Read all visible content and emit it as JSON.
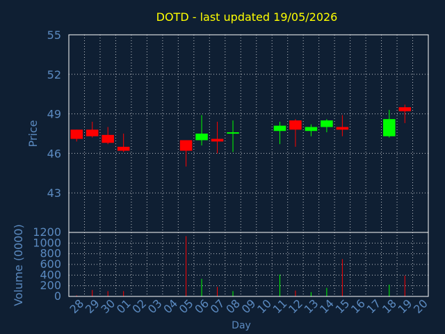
{
  "chart_data": {
    "type": "candlestick",
    "title": "DOTD - last updated 19/05/2026",
    "xlabel": "Day",
    "ylabel": "Price",
    "volume_label": "Volume (0000)",
    "price_ylim": [
      40,
      55
    ],
    "price_ticks": [
      43,
      46,
      49,
      52,
      55
    ],
    "volume_ylim": [
      0,
      1200
    ],
    "volume_ticks": [
      0,
      200,
      400,
      600,
      800,
      1000,
      1200
    ],
    "x_labels": [
      "28",
      "29",
      "30",
      "01",
      "02",
      "03",
      "04",
      "05",
      "06",
      "07",
      "08",
      "09",
      "10",
      "11",
      "12",
      "13",
      "14",
      "15",
      "16",
      "17",
      "18",
      "19",
      "20"
    ],
    "grid": true,
    "colors": {
      "up": "#00ff00",
      "down": "#ff0000",
      "title": "#ffff00",
      "axis": "#5b8ac0",
      "background": "#0f1f33"
    },
    "candles": [
      {
        "x": 0,
        "open": 47.8,
        "high": 47.8,
        "low": 46.9,
        "close": 47.1
      },
      {
        "x": 1,
        "open": 47.8,
        "high": 48.4,
        "low": 47.2,
        "close": 47.3
      },
      {
        "x": 2,
        "open": 47.4,
        "high": 48.0,
        "low": 46.7,
        "close": 46.8
      },
      {
        "x": 3,
        "open": 46.5,
        "high": 47.5,
        "low": 46.1,
        "close": 46.2
      },
      {
        "x": 7,
        "open": 47.0,
        "high": 47.0,
        "low": 45.0,
        "close": 46.2
      },
      {
        "x": 8,
        "open": 47.0,
        "high": 48.9,
        "low": 46.6,
        "close": 47.5
      },
      {
        "x": 9,
        "open": 47.1,
        "high": 48.4,
        "low": 46.0,
        "close": 46.9
      },
      {
        "x": 10,
        "open": 47.5,
        "high": 48.5,
        "low": 46.1,
        "close": 47.6
      },
      {
        "x": 13,
        "open": 47.7,
        "high": 48.4,
        "low": 46.7,
        "close": 48.1
      },
      {
        "x": 14,
        "open": 48.5,
        "high": 48.6,
        "low": 46.5,
        "close": 47.8
      },
      {
        "x": 15,
        "open": 47.7,
        "high": 48.2,
        "low": 47.3,
        "close": 48.0
      },
      {
        "x": 16,
        "open": 48.0,
        "high": 48.6,
        "low": 47.6,
        "close": 48.5
      },
      {
        "x": 17,
        "open": 48.0,
        "high": 48.9,
        "low": 47.3,
        "close": 47.8
      },
      {
        "x": 20,
        "open": 47.3,
        "high": 49.3,
        "low": 47.2,
        "close": 48.6
      },
      {
        "x": 21,
        "open": 49.5,
        "high": 49.7,
        "low": 48.3,
        "close": 49.2
      }
    ],
    "volume": [
      {
        "x": 0,
        "value": 20,
        "dir": "down"
      },
      {
        "x": 1,
        "value": 120,
        "dir": "down"
      },
      {
        "x": 2,
        "value": 100,
        "dir": "down"
      },
      {
        "x": 3,
        "value": 100,
        "dir": "down"
      },
      {
        "x": 7,
        "value": 1130,
        "dir": "down"
      },
      {
        "x": 8,
        "value": 330,
        "dir": "up"
      },
      {
        "x": 9,
        "value": 180,
        "dir": "down"
      },
      {
        "x": 10,
        "value": 100,
        "dir": "up"
      },
      {
        "x": 13,
        "value": 410,
        "dir": "up"
      },
      {
        "x": 14,
        "value": 110,
        "dir": "down"
      },
      {
        "x": 15,
        "value": 80,
        "dir": "up"
      },
      {
        "x": 16,
        "value": 160,
        "dir": "up"
      },
      {
        "x": 17,
        "value": 700,
        "dir": "down"
      },
      {
        "x": 20,
        "value": 220,
        "dir": "up"
      },
      {
        "x": 21,
        "value": 390,
        "dir": "down"
      }
    ]
  }
}
